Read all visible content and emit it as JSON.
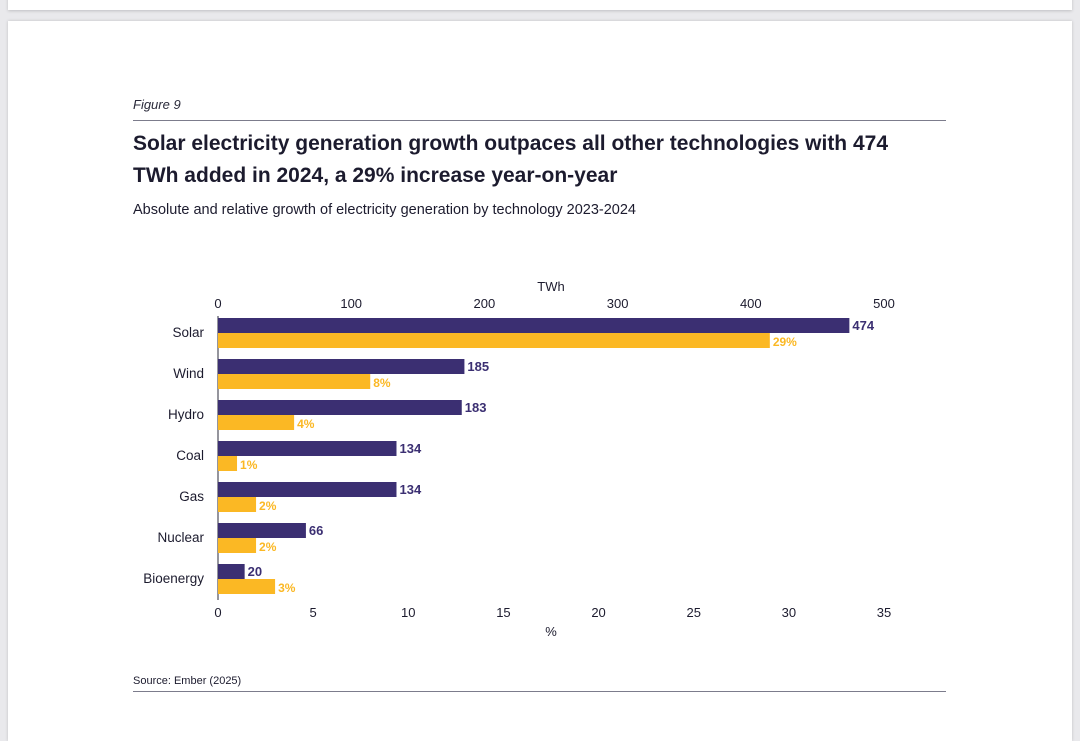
{
  "figure_label": "Figure 9",
  "title": "Solar electricity generation growth outpaces all other technologies with 474 TWh added in 2024, a 29% increase year-on-year",
  "subtitle": "Absolute and relative growth of electricity generation by technology 2023-2024",
  "source": "Source: Ember (2025)",
  "colors": {
    "twh": "#3b2f72",
    "pct": "#fbb824",
    "text": "#1c1b2e"
  },
  "chart_data": {
    "type": "bar",
    "orientation": "horizontal",
    "categories": [
      "Solar",
      "Wind",
      "Hydro",
      "Coal",
      "Gas",
      "Nuclear",
      "Bioenergy"
    ],
    "series": [
      {
        "values": [
          474,
          185,
          183,
          134,
          134,
          66,
          20
        ],
        "labels": [
          "474",
          "185",
          "183",
          "134",
          "134",
          "66",
          "20"
        ],
        "axis": "top"
      },
      {
        "values": [
          29,
          8,
          4,
          1,
          2,
          2,
          3
        ],
        "labels": [
          "29%",
          "8%",
          "4%",
          "1%",
          "2%",
          "2%",
          "3%"
        ],
        "axis": "bottom"
      }
    ],
    "top_axis": {
      "label": "TWh",
      "range": [
        0,
        500
      ],
      "ticks": [
        "0",
        "100",
        "200",
        "300",
        "400",
        "500"
      ]
    },
    "bottom_axis": {
      "label": "%",
      "range": [
        0,
        35
      ],
      "ticks": [
        "0",
        "5",
        "10",
        "15",
        "20",
        "25",
        "30",
        "35"
      ]
    },
    "grid": false,
    "legend": "none"
  }
}
